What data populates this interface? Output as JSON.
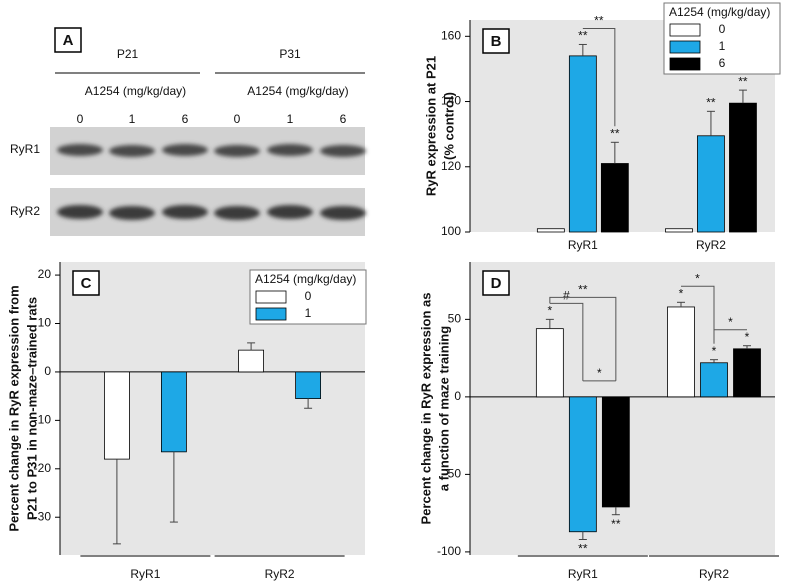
{
  "chart_data": [
    {
      "type": "blot",
      "label": "A",
      "groups": [
        {
          "name": "P21",
          "dose_label": "A1254 (mg/kg/day)",
          "doses": [
            "0",
            "1",
            "6"
          ]
        },
        {
          "name": "P31",
          "dose_label": "A1254 (mg/kg/day)",
          "doses": [
            "0",
            "1",
            "6"
          ]
        }
      ],
      "rows": [
        "RyR1",
        "RyR2"
      ]
    },
    {
      "type": "bar",
      "label": "B",
      "ylabel": [
        "RyR expression at P21",
        "(% control)"
      ],
      "categories": [
        "RyR1",
        "RyR2"
      ],
      "series": [
        {
          "name": "0",
          "color": "#ffffff",
          "values": [
            101,
            101
          ],
          "errors": [
            null,
            null
          ],
          "sig": [
            null,
            null
          ]
        },
        {
          "name": "1",
          "color": "#1ea8e6",
          "values": [
            154,
            129.5
          ],
          "errors": [
            3.5,
            7.5
          ],
          "sig": [
            "**",
            "**"
          ]
        },
        {
          "name": "6",
          "color": "#000000",
          "values": [
            121,
            139.5
          ],
          "errors": [
            6.5,
            4
          ],
          "sig": [
            "**",
            "**"
          ]
        }
      ],
      "ylim": [
        100,
        165
      ],
      "yticks": [
        100,
        120,
        140,
        160
      ],
      "legend_title": "A1254 (mg/kg/day)",
      "legend": "upper right",
      "brackets": [
        {
          "label": "**",
          "category": "RyR1",
          "from": "1",
          "to": "6"
        }
      ]
    },
    {
      "type": "bar",
      "label": "C",
      "ylabel": [
        "Percent change in RyR expression from",
        "P21 to P31 in non-maze–trained rats"
      ],
      "categories": [
        "RyR1",
        "RyR2"
      ],
      "series": [
        {
          "name": "0",
          "color": "#ffffff",
          "values": [
            -18,
            4.5
          ],
          "errors": [
            17.5,
            1.5
          ],
          "sig": [
            null,
            null
          ]
        },
        {
          "name": "1",
          "color": "#1ea8e6",
          "values": [
            -16.5,
            -5.5
          ],
          "errors": [
            14.5,
            2
          ],
          "sig": [
            null,
            null
          ]
        }
      ],
      "ylim": [
        -37.8,
        22.7
      ],
      "yticks": [
        -30,
        -20,
        -10,
        0,
        10,
        20
      ],
      "legend_title": "A1254 (mg/kg/day)",
      "legend": "upper right",
      "brackets": []
    },
    {
      "type": "bar",
      "label": "D",
      "ylabel": [
        "Percent change in RyR expression as",
        "a function of maze training"
      ],
      "categories": [
        "RyR1",
        "RyR2"
      ],
      "series": [
        {
          "name": "0",
          "color": "#ffffff",
          "values": [
            44,
            58
          ],
          "errors": [
            6,
            3
          ],
          "sig": [
            "*",
            "*"
          ]
        },
        {
          "name": "1",
          "color": "#1ea8e6",
          "values": [
            -87,
            22
          ],
          "errors": [
            5,
            2
          ],
          "sig": [
            "**",
            "*"
          ]
        },
        {
          "name": "6",
          "color": "#000000",
          "values": [
            -71,
            31
          ],
          "errors": [
            5,
            2
          ],
          "sig": [
            "**",
            "*"
          ]
        }
      ],
      "ylim": [
        -102,
        87
      ],
      "yticks": [
        -100,
        -50,
        0,
        50
      ],
      "brackets": [
        {
          "label": "*",
          "category": "RyR1",
          "from": "1",
          "to": "6"
        },
        {
          "label": "#",
          "category": "RyR1",
          "from": "0",
          "to": "1"
        },
        {
          "label": "**",
          "category": "RyR1",
          "from": "0",
          "to": "6"
        },
        {
          "label": "*",
          "category": "RyR2",
          "from": "0",
          "to": "1"
        },
        {
          "label": "*",
          "category": "RyR2",
          "from": "1",
          "to": "6"
        }
      ]
    }
  ]
}
